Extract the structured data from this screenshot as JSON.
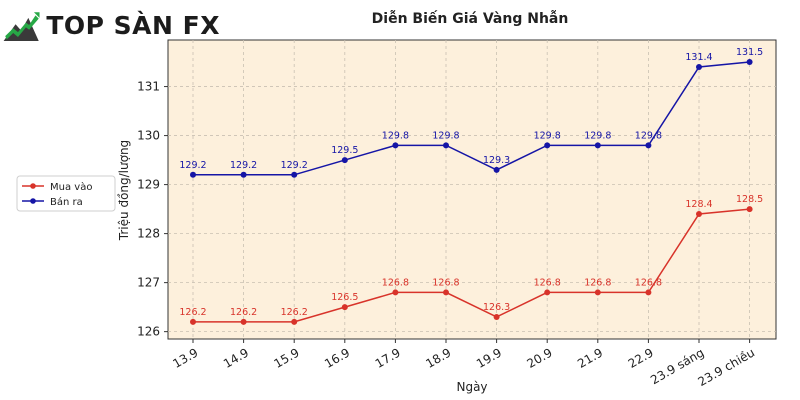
{
  "brand": {
    "logo_text": "TOP SÀN FX",
    "colors": {
      "logo_green": "#27a846",
      "logo_dark": "#3a3a3a"
    }
  },
  "chart_data": {
    "type": "line",
    "title": "Diễn Biến Giá Vàng Nhẫn",
    "xlabel": "Ngày",
    "ylabel": "Triệu đồng/lượng",
    "categories": [
      "13.9",
      "14.9",
      "15.9",
      "16.9",
      "17.9",
      "18.9",
      "19.9",
      "20.9",
      "21.9",
      "22.9",
      "23.9 sáng",
      "23.9 chiều"
    ],
    "ylim": [
      125.85,
      131.95
    ],
    "yticks": [
      126,
      127,
      128,
      129,
      130,
      131
    ],
    "grid": true,
    "legend_position": "left",
    "background": "#fdf0dc",
    "series": [
      {
        "name": "Mua vào",
        "color": "#d8332a",
        "values": [
          126.2,
          126.2,
          126.2,
          126.5,
          126.8,
          126.8,
          126.3,
          126.8,
          126.8,
          126.8,
          128.4,
          128.5
        ],
        "labels": [
          "126.2",
          "126.2",
          "126.2",
          "126.5",
          "126.8",
          "126.8",
          "126.3",
          "126.8",
          "126.8",
          "126.8",
          "128.4",
          "128.5"
        ]
      },
      {
        "name": "Bán ra",
        "color": "#1515a6",
        "values": [
          129.2,
          129.2,
          129.2,
          129.5,
          129.8,
          129.8,
          129.3,
          129.8,
          129.8,
          129.8,
          131.4,
          131.5
        ],
        "labels": [
          "129.2",
          "129.2",
          "129.2",
          "129.5",
          "129.8",
          "129.8",
          "129.3",
          "129.8",
          "129.8",
          "129.8",
          "131.4",
          "131.5"
        ]
      }
    ]
  }
}
